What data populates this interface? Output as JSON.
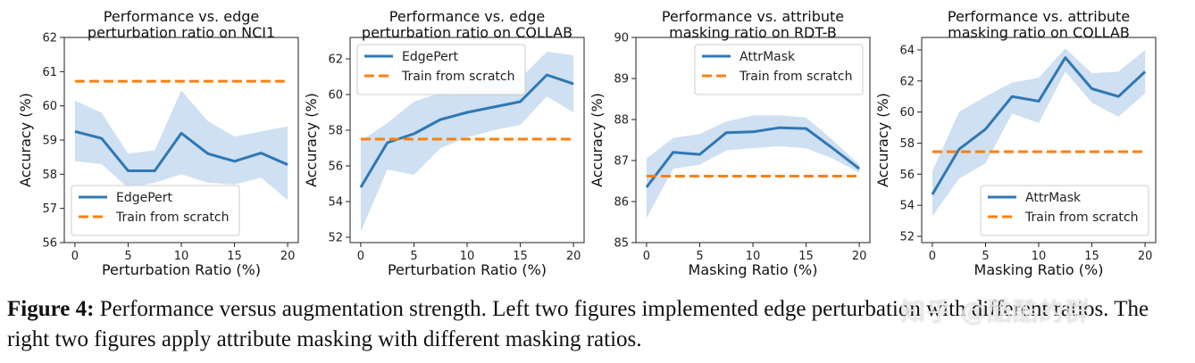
{
  "chart_data": [
    {
      "type": "line",
      "title_line1": "Performance vs. edge",
      "title_line2": "perturbation ratio on NCI1",
      "xlabel": "Perturbation Ratio (%)",
      "ylabel": "Accuracy (%)",
      "xlim": [
        -1,
        21
      ],
      "ylim": [
        56,
        62
      ],
      "xticks": [
        0,
        5,
        10,
        15,
        20
      ],
      "yticks": [
        56,
        57,
        58,
        59,
        60,
        61,
        62
      ],
      "legend_position": "lower-left",
      "series": [
        {
          "name": "EdgePert",
          "style": "solid",
          "color": "#2f77b4",
          "x": [
            0,
            2.5,
            5,
            7.5,
            10,
            12.5,
            15,
            17.5,
            20
          ],
          "y": [
            59.25,
            59.05,
            58.1,
            58.1,
            59.2,
            58.6,
            58.38,
            58.62,
            58.28
          ],
          "band_low": [
            58.38,
            58.3,
            57.6,
            57.75,
            58.0,
            57.75,
            57.7,
            57.9,
            57.25
          ],
          "band_high": [
            60.15,
            59.8,
            58.6,
            58.7,
            60.45,
            59.55,
            59.1,
            59.25,
            59.4
          ]
        },
        {
          "name": "Train from scratch",
          "style": "dashed",
          "color": "#ff7f0e",
          "x": [
            0,
            20
          ],
          "y": [
            60.72,
            60.72
          ]
        }
      ]
    },
    {
      "type": "line",
      "title_line1": "Performance vs. edge",
      "title_line2": "perturbation ratio on COLLAB",
      "xlabel": "Perturbation Ratio (%)",
      "ylabel": "Accuracy (%)",
      "xlim": [
        -1,
        21
      ],
      "ylim": [
        51.7,
        63.2
      ],
      "xticks": [
        0,
        5,
        10,
        15,
        20
      ],
      "yticks": [
        52,
        54,
        56,
        58,
        60,
        62
      ],
      "legend_position": "upper-left",
      "series": [
        {
          "name": "EdgePert",
          "style": "solid",
          "color": "#2f77b4",
          "x": [
            0,
            2.5,
            5,
            7.5,
            10,
            12.5,
            15,
            17.5,
            20
          ],
          "y": [
            54.8,
            57.3,
            57.8,
            58.6,
            59.0,
            59.3,
            59.6,
            61.1,
            60.6
          ],
          "band_low": [
            52.3,
            55.8,
            55.5,
            57.0,
            57.6,
            58.0,
            58.3,
            59.9,
            59.0
          ],
          "band_high": [
            57.4,
            58.4,
            59.6,
            60.1,
            60.5,
            60.9,
            60.9,
            62.4,
            62.2
          ]
        },
        {
          "name": "Train from scratch",
          "style": "dashed",
          "color": "#ff7f0e",
          "x": [
            0,
            20
          ],
          "y": [
            57.5,
            57.5
          ]
        }
      ]
    },
    {
      "type": "line",
      "title_line1": "Performance vs. attribute",
      "title_line2": "masking ratio on RDT-B",
      "xlabel": "Masking Ratio (%)",
      "ylabel": "Accuracy (%)",
      "xlim": [
        -1,
        21
      ],
      "ylim": [
        85,
        90
      ],
      "xticks": [
        0,
        5,
        10,
        15,
        20
      ],
      "yticks": [
        85,
        86,
        87,
        88,
        89,
        90
      ],
      "legend_position": "upper-right",
      "series": [
        {
          "name": "AttrMask",
          "style": "solid",
          "color": "#2f77b4",
          "x": [
            0,
            2.5,
            5,
            7.5,
            10,
            12.5,
            15,
            17.5,
            20
          ],
          "y": [
            86.35,
            87.2,
            87.15,
            87.68,
            87.7,
            87.8,
            87.78,
            87.3,
            86.8
          ],
          "band_low": [
            85.6,
            86.8,
            86.9,
            87.25,
            87.3,
            87.35,
            87.3,
            87.05,
            86.7
          ],
          "band_high": [
            87.05,
            87.55,
            87.65,
            87.95,
            88.1,
            88.1,
            88.05,
            87.5,
            86.9
          ]
        },
        {
          "name": "Train from scratch",
          "style": "dashed",
          "color": "#ff7f0e",
          "x": [
            0,
            20
          ],
          "y": [
            86.62,
            86.62
          ]
        }
      ]
    },
    {
      "type": "line",
      "title_line1": "Performance vs. attribute",
      "title_line2": "masking ratio on COLLAB",
      "xlabel": "Masking Ratio (%)",
      "ylabel": "Accuracy (%)",
      "xlim": [
        -1,
        21
      ],
      "ylim": [
        51.6,
        64.8
      ],
      "xticks": [
        0,
        5,
        10,
        15,
        20
      ],
      "yticks": [
        52,
        54,
        56,
        58,
        60,
        62,
        64
      ],
      "legend_position": "lower-right",
      "series": [
        {
          "name": "AttrMask",
          "style": "solid",
          "color": "#2f77b4",
          "x": [
            0,
            2.5,
            5,
            7.5,
            10,
            12.5,
            15,
            17.5,
            20
          ],
          "y": [
            54.7,
            57.6,
            58.9,
            61.0,
            60.7,
            63.5,
            61.5,
            61.0,
            62.6
          ],
          "band_low": [
            53.3,
            55.7,
            56.7,
            59.9,
            59.3,
            62.6,
            60.6,
            59.7,
            61.2
          ],
          "band_high": [
            56.2,
            60.0,
            61.0,
            61.9,
            62.2,
            64.1,
            62.5,
            62.6,
            64.0
          ]
        },
        {
          "name": "Train from scratch",
          "style": "dashed",
          "color": "#ff7f0e",
          "x": [
            0,
            20
          ],
          "y": [
            57.45,
            57.45
          ]
        }
      ]
    }
  ],
  "caption": {
    "label": "Figure 4:",
    "text": " Performance versus augmentation strength. Left two figures implemented edge perturbation with different ratios. The right two figures apply attribute masking with different masking ratios."
  },
  "watermark": "知乎 @酷酷的群"
}
